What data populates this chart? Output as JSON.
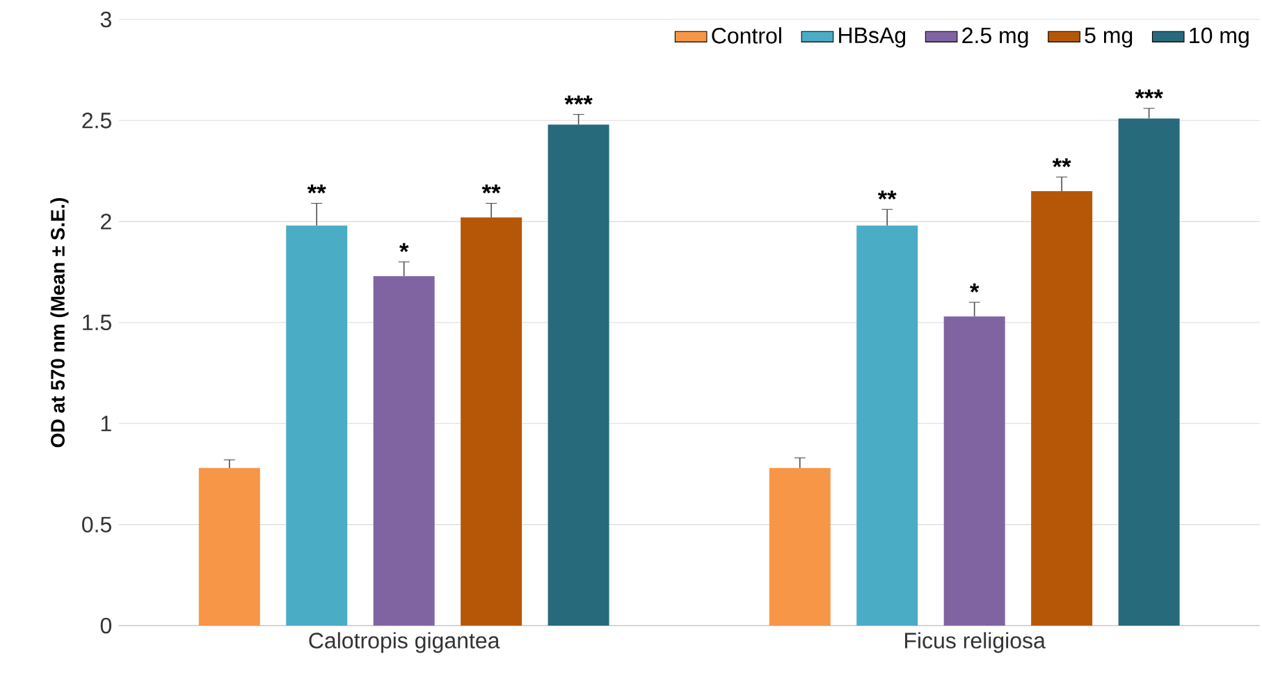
{
  "chart_data": {
    "type": "bar",
    "ylabel": "OD at 570 nm (Mean ± S.E.)",
    "categories": [
      "Calotropis gigantea",
      "Ficus religiosa"
    ],
    "series": [
      {
        "name": "Control",
        "color": "#f79646",
        "values": [
          0.78,
          0.78
        ],
        "errors": [
          0.04,
          0.05
        ],
        "value_labels": [
          null,
          null
        ]
      },
      {
        "name": "HBsAg",
        "color": "#4bacc6",
        "values": [
          1.98,
          1.98
        ],
        "errors": [
          0.11,
          0.08
        ],
        "value_labels": [
          "**",
          "**"
        ]
      },
      {
        "name": "2.5 mg",
        "color": "#8064a2",
        "values": [
          1.73,
          1.53
        ],
        "errors": [
          0.07,
          0.07
        ],
        "value_labels": [
          "*",
          "*"
        ]
      },
      {
        "name": "5 mg",
        "color": "#b65708",
        "values": [
          2.02,
          2.15
        ],
        "errors": [
          0.07,
          0.07
        ],
        "value_labels": [
          "**",
          "**"
        ]
      },
      {
        "name": "10 mg",
        "color": "#276a7c",
        "values": [
          2.48,
          2.51
        ],
        "errors": [
          0.05,
          0.05
        ],
        "value_labels": [
          "***",
          "***"
        ]
      }
    ],
    "ylim": [
      0,
      3
    ],
    "yticks": [
      0,
      0.5,
      1,
      1.5,
      2,
      2.5,
      3
    ],
    "grid": "y",
    "legend": "top right"
  }
}
